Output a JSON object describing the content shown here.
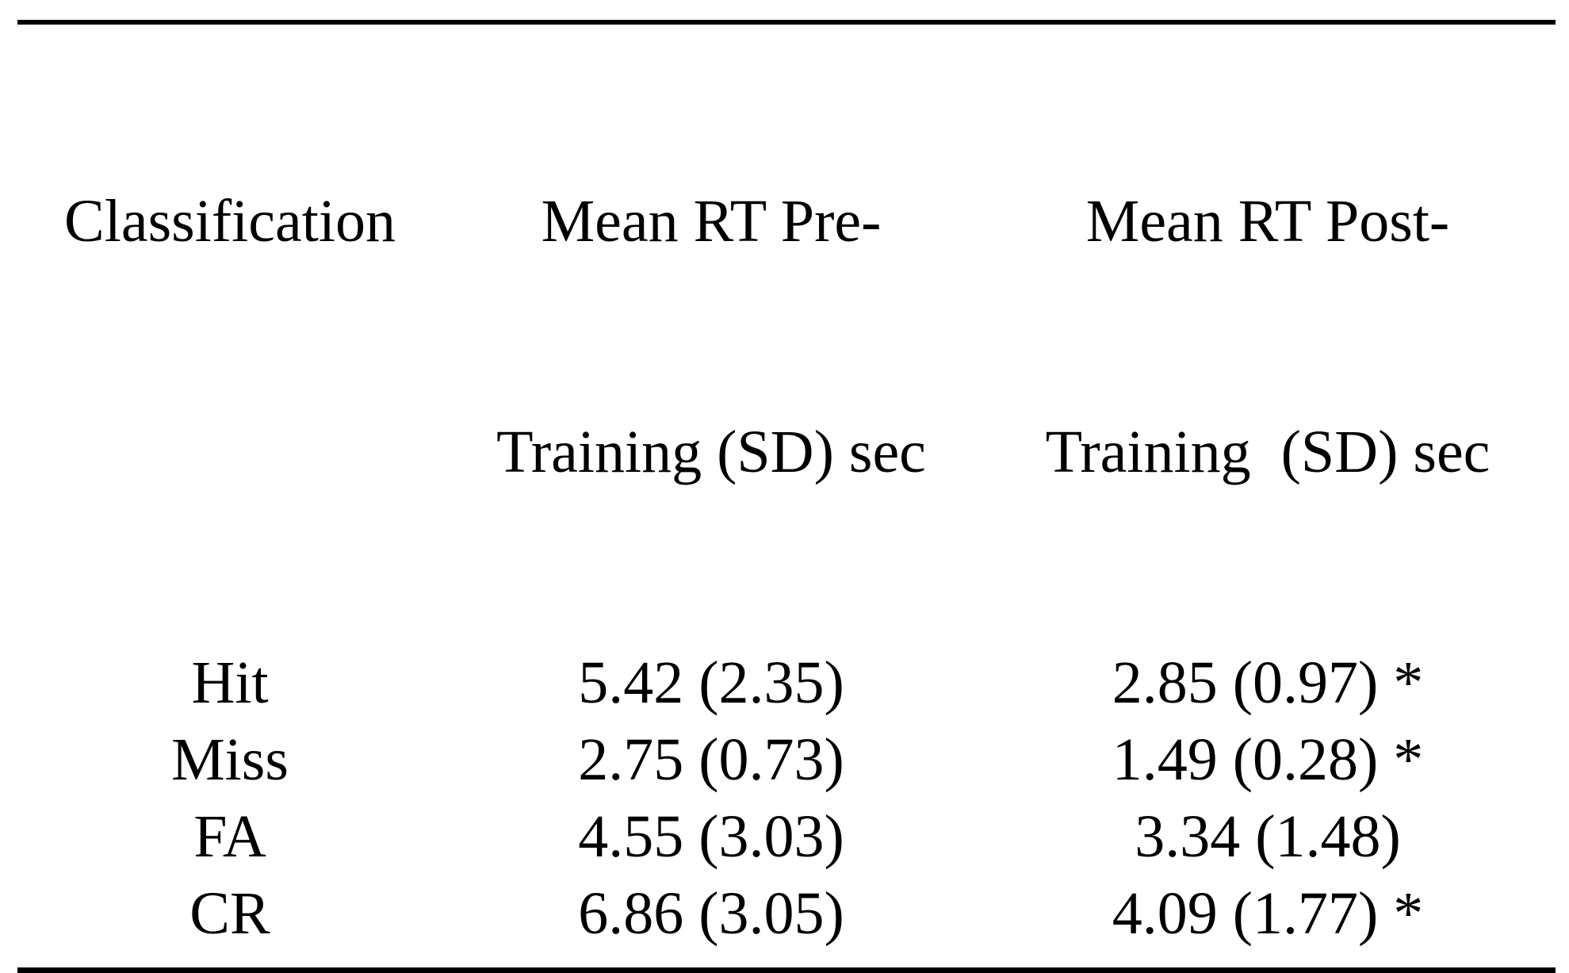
{
  "document": {
    "kind": "paper-table",
    "colors": {
      "background": "#ffffff",
      "text": "#000000",
      "rule": "#000000"
    }
  },
  "table": {
    "columns": [
      {
        "label_line1": "Classification",
        "label_line2": ""
      },
      {
        "label_line1": "Mean RT Pre-",
        "label_line2": "Training (SD) sec"
      },
      {
        "label_line1": "Mean RT Post-",
        "label_line2": "Training  (SD) sec"
      }
    ],
    "rows": [
      {
        "classification": "Hit",
        "pre": "5.42 (2.35)",
        "post": "2.85 (0.97) *"
      },
      {
        "classification": "Miss",
        "pre": "2.75 (0.73)",
        "post": "1.49 (0.28) *"
      },
      {
        "classification": "FA",
        "pre": "4.55 (3.03)",
        "post": "3.34 (1.48)"
      },
      {
        "classification": "CR",
        "pre": "6.86 (3.05)",
        "post": "4.09 (1.77) *"
      }
    ],
    "significance_marker": "*"
  }
}
